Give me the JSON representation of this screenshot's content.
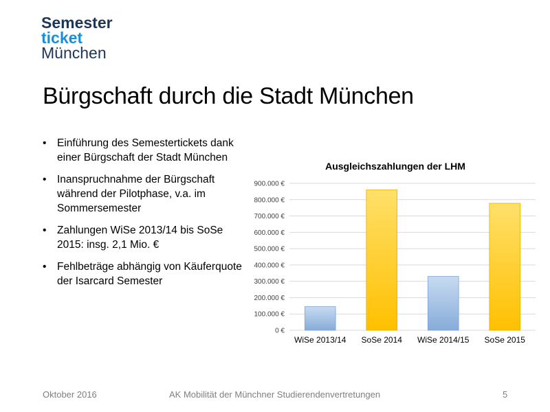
{
  "logo": {
    "line1": "Semester",
    "line2": "ticket",
    "line3": "München"
  },
  "slide": {
    "title": "Bürgschaft durch die Stadt München",
    "bullet_symbol": "•",
    "bullets": [
      "Einführung des Semestertickets dank einer Bürgschaft der Stadt München",
      "Inanspruchnahme der Bürgschaft während der Pilotphase, v.a. im Sommersemester",
      "Zahlungen WiSe 2013/14 bis SoSe 2015: insg. 2,1 Mio. €",
      "Fehlbeträge abhängig von Käuferquote der Isarcard Semester"
    ]
  },
  "chart_data": {
    "type": "bar",
    "title": "Ausgleichszahlungen der LHM",
    "categories": [
      "WiSe 2013/14",
      "SoSe 2014",
      "WiSe 2014/15",
      "SoSe 2015"
    ],
    "values": [
      145000,
      860000,
      330000,
      778000
    ],
    "ylim": [
      0,
      900000
    ],
    "yticks": [
      0,
      100000,
      200000,
      300000,
      400000,
      500000,
      600000,
      700000,
      800000,
      900000
    ],
    "ytick_labels": [
      "0 €",
      "100.000 €",
      "200.000 €",
      "300.000 €",
      "400.000 €",
      "500.000 €",
      "600.000 €",
      "700.000 €",
      "800.000 €",
      "900.000 €"
    ],
    "grid": true,
    "colors": {
      "wise": [
        "#c7dbf1",
        "#86acd9"
      ],
      "sose": [
        "#ffe06a",
        "#ffc000"
      ],
      "bar_stroke_wise": "#7ea3d2",
      "bar_stroke_sose": "#e8b000",
      "grid": "#d9d9d9",
      "axis_text": "#404040",
      "title": "#000000"
    }
  },
  "footer": {
    "date": "Oktober 2016",
    "organization": "AK Mobilität der Münchner Studierendenvertretungen",
    "page_number": "5"
  }
}
